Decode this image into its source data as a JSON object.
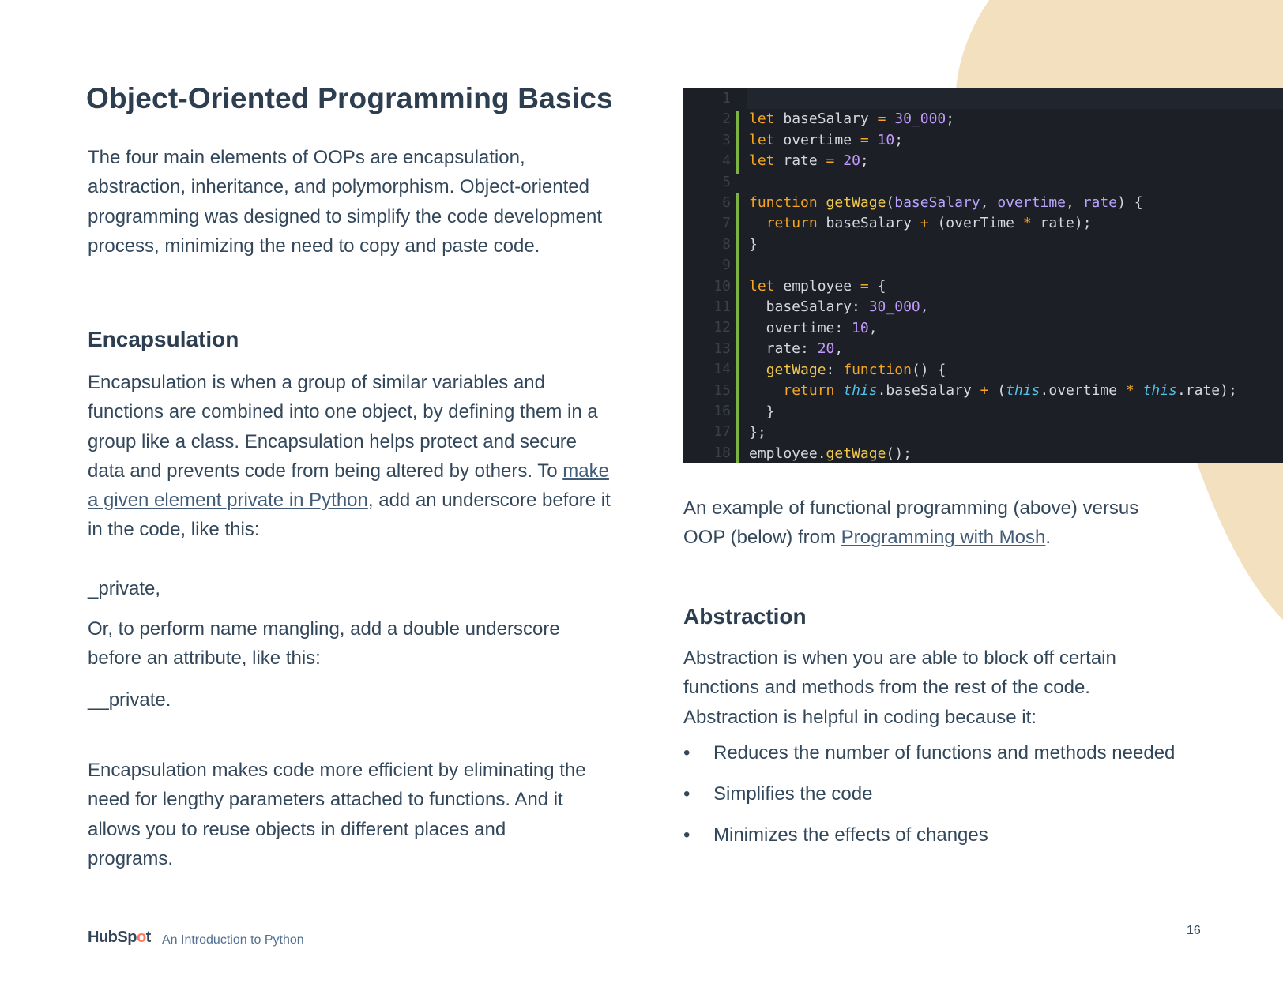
{
  "title": "Object-Oriented Programming Basics",
  "intro": "The four main elements of OOPs are encapsulation, abstraction, inheritance, and polymorphism. Object-oriented programming was designed to simplify the code development process, minimizing the need to copy and paste code.",
  "encapsulation": {
    "heading": "Encapsulation",
    "p1_before": "Encapsulation is when a group of similar variables and functions are combined into one object, by defining them in a group like a class. Encapsulation helps protect and secure data and prevents code from being altered by others. To ",
    "p1_link": "make a given element private in Python",
    "p1_after": ", add an underscore before it in the code, like this:",
    "example1": "_private,",
    "p2": "Or, to perform name mangling, add a double underscore before an attribute, like this:",
    "example2": "__private.",
    "p3": "Encapsulation makes code more efficient by eliminating the need for lengthy parameters attached to functions. And it allows you to reuse objects in different places and programs."
  },
  "code": {
    "line_numbers": [
      "1",
      "2",
      "3",
      "4",
      "5",
      "6",
      "7",
      "8",
      "9",
      "10",
      "11",
      "12",
      "13",
      "14",
      "15",
      "16",
      "17",
      "18"
    ]
  },
  "caption": {
    "before": " An example of functional programming (above) versus OOP (below) from ",
    "link": "Programming with Mosh",
    "after": "."
  },
  "abstraction": {
    "heading": "Abstraction",
    "p1": "Abstraction is when you are able to block off certain functions and methods from the rest of the code. Abstraction is helpful in coding because it:",
    "bullets": [
      "Reduces the number of functions and methods needed",
      "Simplifies the code",
      "Minimizes the effects of changes"
    ]
  },
  "footer": {
    "logo": "HubSpot",
    "doc_title": "An Introduction to Python",
    "page": "16"
  },
  "colors": {
    "accent_blob": "#f3e0bf",
    "heading": "#2d3e50",
    "link": "#425b76",
    "code_bg": "#1c1f26",
    "logo_orange": "#ff7a59"
  }
}
